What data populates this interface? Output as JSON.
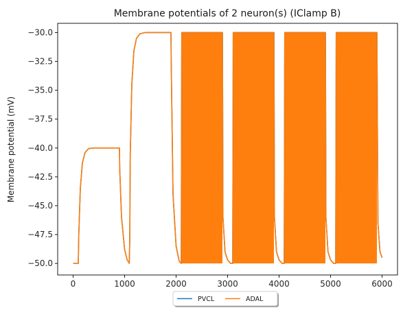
{
  "chart_data": {
    "type": "line",
    "title": "Membrane potentials of 2 neuron(s) (IClamp B)",
    "xlabel": "",
    "ylabel": "Membrane potential (mV)",
    "xlim": [
      -300,
      6300
    ],
    "ylim": [
      -51.0,
      -29.2
    ],
    "xticks": [
      0,
      1000,
      2000,
      3000,
      4000,
      5000,
      6000
    ],
    "xtick_labels": [
      "0",
      "1000",
      "2000",
      "3000",
      "4000",
      "5000",
      "6000"
    ],
    "yticks": [
      -30.0,
      -32.5,
      -35.0,
      -37.5,
      -40.0,
      -42.5,
      -45.0,
      -47.5,
      -50.0
    ],
    "ytick_labels": [
      "−30.0",
      "−32.5",
      "−35.0",
      "−37.5",
      "−40.0",
      "−42.5",
      "−45.0",
      "−47.5",
      "−50.0"
    ],
    "grid": false,
    "legend_position": "bottom-center, outside below axes",
    "series": [
      {
        "name": "PVCL",
        "color": "#1f77b4",
        "x": [
          0,
          100,
          110,
          140,
          180,
          230,
          300,
          400,
          900,
          905,
          940,
          1000,
          1050,
          1080,
          1090,
          1100,
          1110,
          1140,
          1180,
          1230,
          1300,
          1400,
          1900,
          1905,
          1940,
          2000,
          2060,
          2100,
          2110,
          2900,
          2910,
          2950,
          3000,
          3060,
          3100,
          3110,
          3900,
          3910,
          3950,
          4000,
          4060,
          4100,
          4110,
          4900,
          4910,
          4950,
          5000,
          5060,
          5100,
          5110,
          5900,
          5920,
          5960,
          6000
        ],
        "y": [
          -50.0,
          -50.0,
          -47.5,
          -43.5,
          -41.3,
          -40.4,
          -40.05,
          -40.0,
          -40.0,
          -41.8,
          -46.0,
          -48.8,
          -49.7,
          -49.9,
          -50.0,
          -48.0,
          -40.5,
          -34.5,
          -31.6,
          -30.5,
          -30.1,
          -30.0,
          -30.0,
          -32.5,
          -44.0,
          -48.5,
          -49.8,
          -50.0,
          -30.0,
          -30.0,
          -46.0,
          -49.0,
          -49.7,
          -50.0,
          -50.0,
          -30.0,
          -30.0,
          -46.0,
          -49.0,
          -49.7,
          -50.0,
          -50.0,
          -30.0,
          -30.0,
          -46.0,
          -49.0,
          -49.7,
          -50.0,
          -50.0,
          -30.0,
          -30.0,
          -46.5,
          -49.0,
          -49.5
        ]
      },
      {
        "name": "ADAL",
        "color": "#ff7f0e",
        "x": [
          0,
          100,
          110,
          140,
          180,
          230,
          300,
          400,
          900,
          905,
          940,
          1000,
          1050,
          1080,
          1090,
          1100,
          1110,
          1140,
          1180,
          1230,
          1300,
          1400,
          1900,
          1905,
          1940,
          2000,
          2060,
          2100,
          2110,
          2900,
          2910,
          2950,
          3000,
          3060,
          3100,
          3110,
          3900,
          3910,
          3950,
          4000,
          4060,
          4100,
          4110,
          4900,
          4910,
          4950,
          5000,
          5060,
          5100,
          5110,
          5900,
          5920,
          5960,
          6000
        ],
        "y": [
          -50.0,
          -50.0,
          -47.5,
          -43.5,
          -41.3,
          -40.4,
          -40.05,
          -40.0,
          -40.0,
          -41.8,
          -46.0,
          -48.8,
          -49.7,
          -49.9,
          -50.0,
          -48.0,
          -40.5,
          -34.5,
          -31.6,
          -30.5,
          -30.1,
          -30.0,
          -30.0,
          -32.5,
          -44.0,
          -48.5,
          -49.8,
          -50.0,
          -30.0,
          -30.0,
          -46.0,
          -49.0,
          -49.7,
          -50.0,
          -50.0,
          -30.0,
          -30.0,
          -46.0,
          -49.0,
          -49.7,
          -50.0,
          -50.0,
          -30.0,
          -30.0,
          -46.0,
          -49.0,
          -49.7,
          -50.0,
          -50.0,
          -30.0,
          -30.0,
          -46.5,
          -49.0,
          -49.5
        ],
        "oscillation_bands": [
          {
            "x_start": 2110,
            "x_end": 2900,
            "y_low": -50.0,
            "y_high": -30.0
          },
          {
            "x_start": 3110,
            "x_end": 3900,
            "y_low": -50.0,
            "y_high": -30.0
          },
          {
            "x_start": 4110,
            "x_end": 4900,
            "y_low": -50.0,
            "y_high": -30.0
          },
          {
            "x_start": 5110,
            "x_end": 5900,
            "y_low": -50.0,
            "y_high": -30.0
          }
        ]
      }
    ]
  }
}
